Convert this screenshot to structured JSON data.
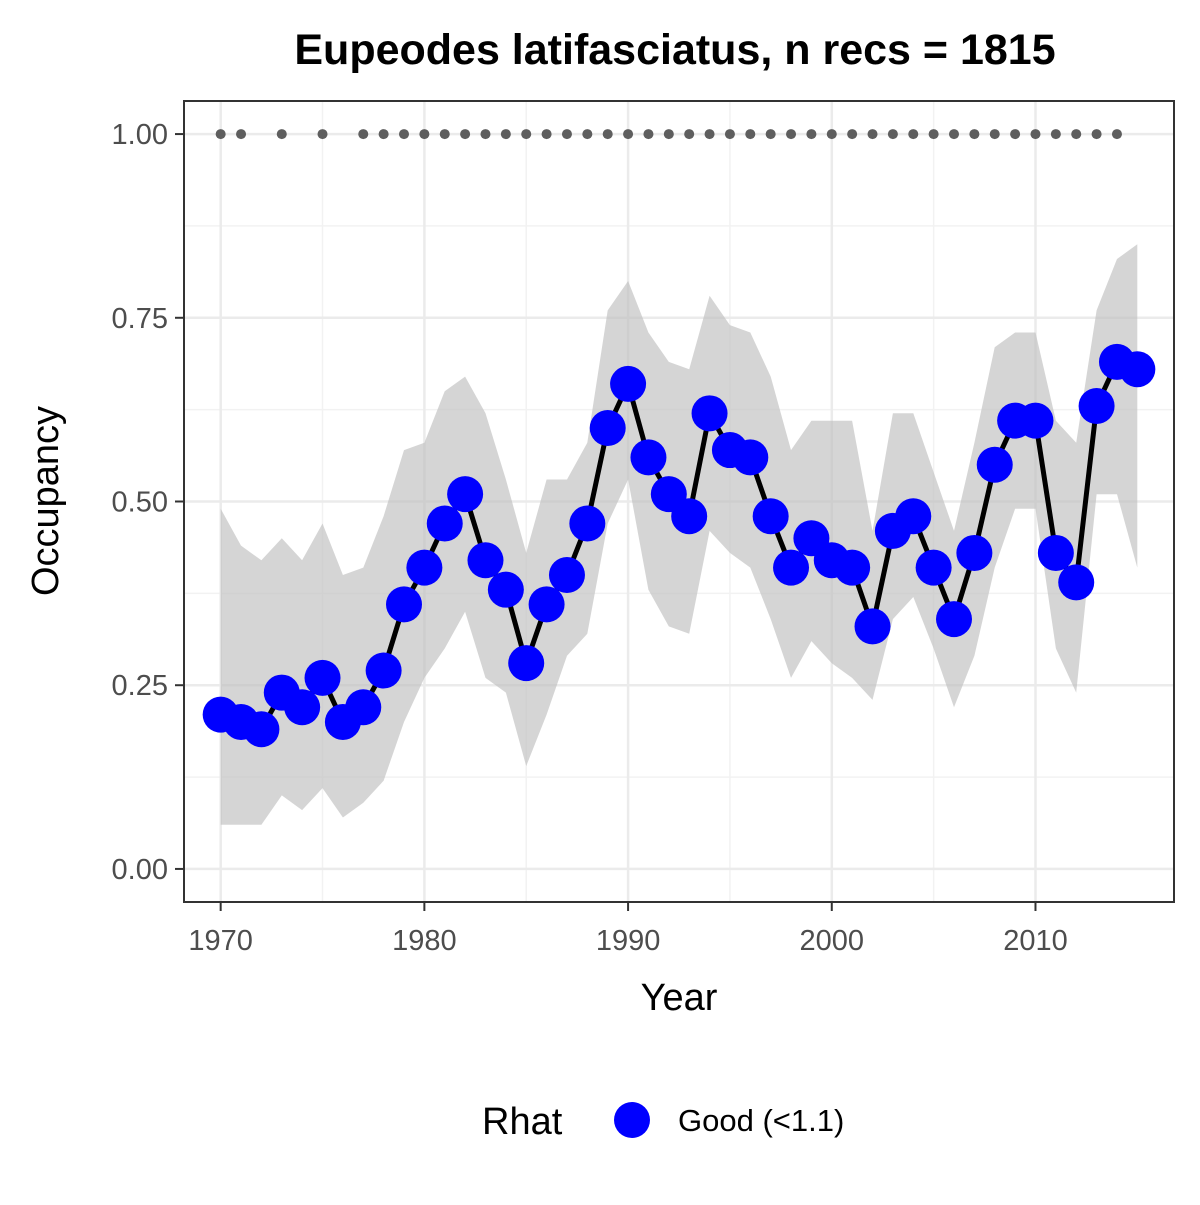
{
  "chart_data": {
    "type": "line",
    "title": "Eupeodes latifasciatus, n recs = 1815",
    "xlabel": "Year",
    "ylabel": "Occupancy",
    "xlim": [
      1968.2,
      2016.8
    ],
    "ylim": [
      -0.045,
      1.045
    ],
    "x_ticks": [
      1970,
      1980,
      1990,
      2000,
      2010
    ],
    "x_tick_labels": [
      "1970",
      "1980",
      "1990",
      "2000",
      "2010"
    ],
    "y_ticks": [
      0,
      0.25,
      0.5,
      0.75,
      1.0
    ],
    "y_tick_labels": [
      "0.00",
      "0.25",
      "0.50",
      "0.75",
      "1.00"
    ],
    "grid": true,
    "legend": {
      "position": "bottom",
      "title": "Rhat",
      "entries": [
        {
          "label": "Good (<1.1)",
          "color": "#0000ff"
        }
      ]
    },
    "colors": {
      "points": "#0000ff",
      "line": "#000000",
      "ribbon": "#bfbfbf",
      "record_dots": "#5e5e5e"
    },
    "series": [
      {
        "x": [
          1970,
          1971,
          1972,
          1973,
          1974,
          1975,
          1976,
          1977,
          1978,
          1979,
          1980,
          1981,
          1982,
          1983,
          1984,
          1985,
          1986,
          1987,
          1988,
          1989,
          1990,
          1991,
          1992,
          1993,
          1994,
          1995,
          1996,
          1997,
          1998,
          1999,
          2000,
          2001,
          2002,
          2003,
          2004,
          2005,
          2006,
          2007,
          2008,
          2009,
          2010,
          2011,
          2012,
          2013,
          2014,
          2015
        ],
        "y": [
          0.21,
          0.2,
          0.19,
          0.24,
          0.22,
          0.26,
          0.2,
          0.22,
          0.27,
          0.36,
          0.41,
          0.47,
          0.51,
          0.42,
          0.38,
          0.28,
          0.36,
          0.4,
          0.47,
          0.6,
          0.66,
          0.56,
          0.51,
          0.48,
          0.62,
          0.57,
          0.56,
          0.48,
          0.41,
          0.45,
          0.42,
          0.41,
          0.33,
          0.46,
          0.48,
          0.41,
          0.34,
          0.43,
          0.55,
          0.61,
          0.61,
          0.43,
          0.39,
          0.63,
          0.69,
          0.68
        ],
        "lower": [
          0.06,
          0.06,
          0.06,
          0.1,
          0.08,
          0.11,
          0.07,
          0.09,
          0.12,
          0.2,
          0.26,
          0.3,
          0.35,
          0.26,
          0.24,
          0.14,
          0.21,
          0.29,
          0.32,
          0.47,
          0.53,
          0.38,
          0.33,
          0.32,
          0.46,
          0.43,
          0.41,
          0.34,
          0.26,
          0.31,
          0.28,
          0.26,
          0.23,
          0.34,
          0.37,
          0.3,
          0.22,
          0.29,
          0.41,
          0.49,
          0.49,
          0.3,
          0.24,
          0.51,
          0.51,
          0.41
        ],
        "upper": [
          0.49,
          0.44,
          0.42,
          0.45,
          0.42,
          0.47,
          0.4,
          0.41,
          0.48,
          0.57,
          0.58,
          0.65,
          0.67,
          0.62,
          0.53,
          0.43,
          0.53,
          0.53,
          0.58,
          0.76,
          0.8,
          0.73,
          0.69,
          0.68,
          0.78,
          0.74,
          0.73,
          0.67,
          0.57,
          0.61,
          0.61,
          0.61,
          0.46,
          0.62,
          0.62,
          0.54,
          0.46,
          0.58,
          0.71,
          0.73,
          0.73,
          0.61,
          0.58,
          0.76,
          0.83,
          0.85
        ]
      }
    ],
    "record_years": [
      1970,
      1971,
      1973,
      1975,
      1977,
      1978,
      1979,
      1980,
      1981,
      1982,
      1983,
      1984,
      1985,
      1986,
      1987,
      1988,
      1989,
      1990,
      1991,
      1992,
      1993,
      1994,
      1995,
      1996,
      1997,
      1998,
      1999,
      2000,
      2001,
      2002,
      2003,
      2004,
      2005,
      2006,
      2007,
      2008,
      2009,
      2010,
      2011,
      2012,
      2013,
      2014
    ],
    "record_y": 1.0
  }
}
